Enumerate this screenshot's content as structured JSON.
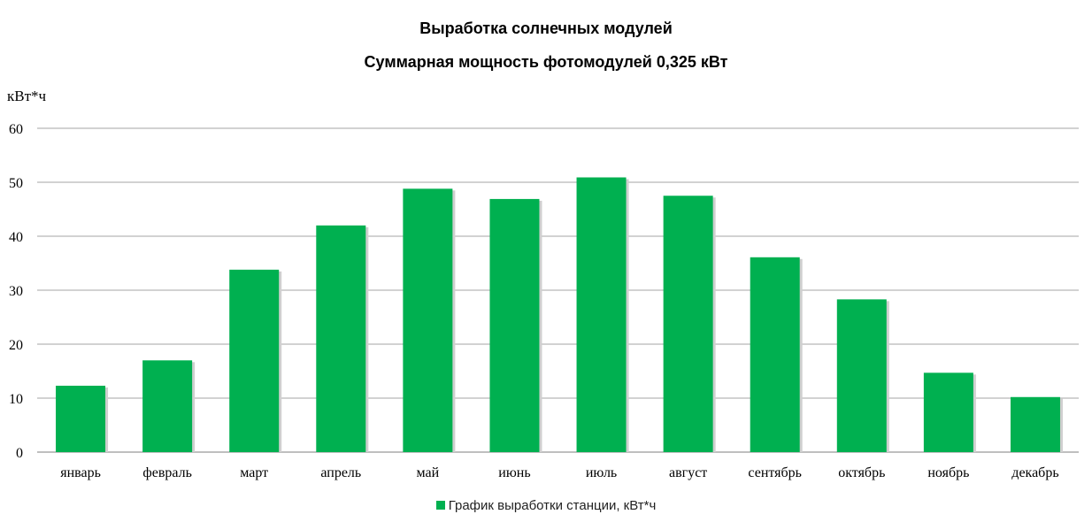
{
  "chart_data": {
    "type": "bar",
    "title": "Выработка солнечных модулей",
    "subtitle": "Суммарная мощность фотомодулей 0,325 кВт",
    "ylabel": "кВт*ч",
    "xlabel": "",
    "categories": [
      "январь",
      "февраль",
      "март",
      "апрель",
      "май",
      "июнь",
      "июль",
      "август",
      "сентябрь",
      "октябрь",
      "ноябрь",
      "декабрь"
    ],
    "series": [
      {
        "name": "График выработки станции, кВт*ч",
        "values": [
          12.3,
          17.0,
          33.8,
          42.0,
          48.8,
          46.9,
          50.9,
          47.5,
          36.1,
          28.3,
          14.7,
          10.2
        ],
        "color": "#00b050"
      }
    ],
    "ylim": [
      0,
      60
    ],
    "yticks": [
      0,
      10,
      20,
      30,
      40,
      50,
      60
    ],
    "grid": true,
    "legend_position": "bottom"
  }
}
